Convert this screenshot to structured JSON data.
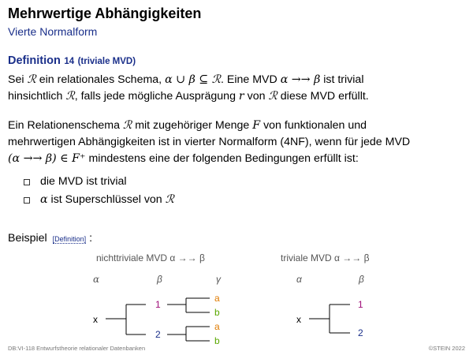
{
  "title": "Mehrwertige Abhängigkeiten",
  "subtitle": "Vierte Normalform",
  "definition": {
    "label": "Definition",
    "number": "14",
    "name": "(triviale MVD)",
    "text_1": "Sei",
    "text_2": "ein relationales Schema,",
    "text_3": ". Eine MVD",
    "text_4": "ist trivial",
    "text_5": "hinsichtlich",
    "text_6": ", falls jede mögliche Ausprägung",
    "text_7": "von",
    "text_8": "diese MVD erfüllt."
  },
  "math": {
    "R": "ℛ",
    "union": "α ∪ β ⊆ ℛ",
    "mvd": "α →→ β",
    "r": "r",
    "F": "F",
    "mvd_paren": "(α →→ β) ∈ F⁺"
  },
  "nf4": {
    "text_1": "Ein Relationenschema",
    "text_2": "mit zugehöriger Menge",
    "text_3": "von funktionalen und",
    "text_4": "mehrwertigen Abhängigkeiten ist in vierter Normalform (4NF), wenn für jede MVD",
    "text_5": "mindestens eine der folgenden Bedingungen erfüllt ist:"
  },
  "conditions": {
    "c1": "die MVD ist trivial",
    "c2_alpha": "α",
    "c2_text": "ist Superschlüssel von"
  },
  "example": {
    "label": "Beispiel",
    "link": "[Definition]",
    "colon": ":"
  },
  "diagram_left": {
    "caption": "nichttriviale MVD   α →→ β",
    "col_alpha": "α",
    "col_beta": "β",
    "col_gamma": "γ",
    "x": "x",
    "b1": "1",
    "b2": "2",
    "g_a1": "a",
    "g_b1": "b",
    "g_a2": "a",
    "g_b2": "b"
  },
  "diagram_right": {
    "caption": "triviale MVD   α →→ β",
    "col_alpha": "α",
    "col_beta": "β",
    "x": "x",
    "b1": "1",
    "b2": "2"
  },
  "colors": {
    "accent_blue": "#1a2f8a",
    "magenta": "#a0107a",
    "navy": "#1a2f8a",
    "orange": "#e07b00",
    "green": "#5aa800"
  },
  "footer": {
    "left": "DB:VI-118   Entwurfstheorie relationaler Datenbanken",
    "right": "©STEIN 2022"
  }
}
